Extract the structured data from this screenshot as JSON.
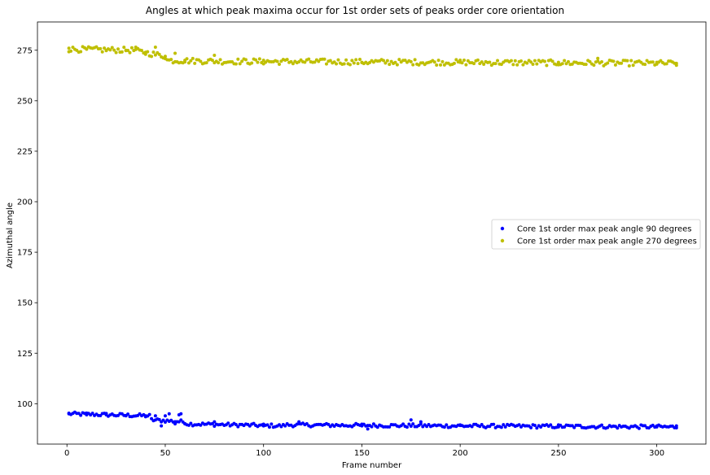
{
  "chart_data": {
    "type": "scatter",
    "title": "Angles at which peak maxima occur for 1st order sets of peaks order core orientation",
    "xlabel": "Frame number",
    "ylabel": "Azimuthal angle",
    "xlim": [
      -15,
      325
    ],
    "ylim": [
      80,
      289
    ],
    "xticks": [
      0,
      50,
      100,
      150,
      200,
      250,
      300
    ],
    "yticks": [
      100,
      125,
      150,
      175,
      200,
      225,
      250,
      275
    ],
    "grid": false,
    "legend_position": "center-right",
    "frames": {
      "start": 1,
      "end": 310
    },
    "series": [
      {
        "name": "Core 1st order max peak angle 90 degrees",
        "color": "#0000ff",
        "segments": [
          {
            "x": [
              1,
              42
            ],
            "y": [
              95,
              94
            ]
          },
          {
            "x": [
              43,
              60
            ],
            "y": [
              92,
              91
            ]
          },
          {
            "x": [
              61,
              110
            ],
            "y": [
              90,
              89
            ]
          },
          {
            "x": [
              111,
              200
            ],
            "y": [
              89.5,
              89
            ]
          },
          {
            "x": [
              201,
              310
            ],
            "y": [
              89,
              88.5
            ]
          }
        ],
        "noise": 0.9,
        "values_x": [
          1,
          10,
          20,
          30,
          40,
          45,
          48,
          50,
          52,
          55,
          57,
          58,
          60,
          75,
          100,
          118,
          150,
          153,
          175,
          180,
          200,
          250,
          300,
          310
        ],
        "values_y": [
          95,
          94.5,
          94.5,
          94,
          94,
          94,
          89,
          94,
          95,
          90,
          94.5,
          95,
          90,
          91,
          89,
          91,
          89,
          87.5,
          92,
          91,
          89.5,
          88.5,
          89,
          89
        ]
      },
      {
        "name": "Core 1st order max peak angle 270 degrees",
        "color": "#bfbf00",
        "segments": [
          {
            "x": [
              1,
              35
            ],
            "y": [
              275.5,
              275
            ]
          },
          {
            "x": [
              36,
              50
            ],
            "y": [
              274.5,
              272
            ]
          },
          {
            "x": [
              51,
              80
            ],
            "y": [
              270,
              269.5
            ]
          },
          {
            "x": [
              81,
              200
            ],
            "y": [
              269.5,
              269
            ]
          },
          {
            "x": [
              201,
              310
            ],
            "y": [
              269,
              268.5
            ]
          }
        ],
        "noise": 1.4,
        "values_x": [
          1,
          10,
          20,
          30,
          35,
          40,
          45,
          50,
          55,
          60,
          75,
          100,
          150,
          200,
          250,
          270,
          300,
          310
        ],
        "values_y": [
          276,
          275.5,
          275,
          275,
          276.5,
          274,
          276.5,
          272,
          273.5,
          270,
          272.5,
          270,
          269,
          269,
          269,
          271,
          269,
          268.5
        ]
      }
    ]
  }
}
